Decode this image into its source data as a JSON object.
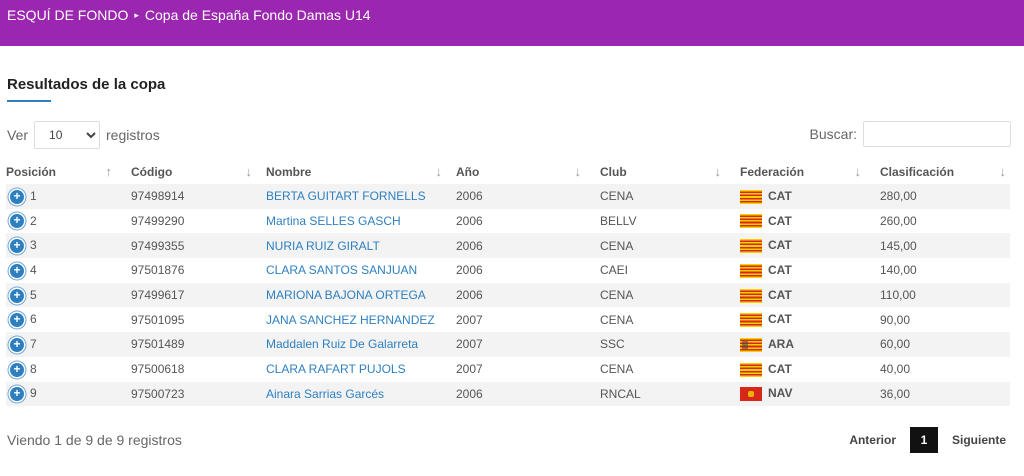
{
  "breadcrumb": {
    "root": "ESQUÍ DE FONDO",
    "separator": "▸",
    "current": "Copa de España Fondo Damas U14"
  },
  "section_title": "Resultados de la copa",
  "length": {
    "prefix": "Ver",
    "value": "10",
    "suffix": "registros"
  },
  "search": {
    "label": "Buscar:",
    "value": ""
  },
  "table": {
    "headers": {
      "pos": "Posición",
      "code": "Código",
      "name": "Nombre",
      "year": "Año",
      "club": "Club",
      "fed": "Federación",
      "score": "Clasificación"
    },
    "sort_icons": {
      "pos": "↑",
      "code": "↓",
      "name": "↓",
      "year": "↓",
      "club": "↓",
      "fed": "↓",
      "score": "↓"
    },
    "rows": [
      {
        "pos": "1",
        "code": "97498914",
        "name": "BERTA GUITART FORNELLS",
        "year": "2006",
        "club": "CENA",
        "fed": "CAT",
        "flag": "cat",
        "score": "280,00"
      },
      {
        "pos": "2",
        "code": "97499290",
        "name": "Martina SELLES GASCH",
        "year": "2006",
        "club": "BELLV",
        "fed": "CAT",
        "flag": "cat",
        "score": "260,00"
      },
      {
        "pos": "3",
        "code": "97499355",
        "name": "NURIA RUIZ GIRALT",
        "year": "2006",
        "club": "CENA",
        "fed": "CAT",
        "flag": "cat",
        "score": "145,00"
      },
      {
        "pos": "4",
        "code": "97501876",
        "name": "CLARA SANTOS SANJUAN",
        "year": "2006",
        "club": "CAEI",
        "fed": "CAT",
        "flag": "cat",
        "score": "140,00"
      },
      {
        "pos": "5",
        "code": "97499617",
        "name": "MARIONA BAJONA ORTEGA",
        "year": "2006",
        "club": "CENA",
        "fed": "CAT",
        "flag": "cat",
        "score": "110,00"
      },
      {
        "pos": "6",
        "code": "97501095",
        "name": "JANA SANCHEZ HERNANDEZ",
        "year": "2007",
        "club": "CENA",
        "fed": "CAT",
        "flag": "cat",
        "score": "90,00"
      },
      {
        "pos": "7",
        "code": "97501489",
        "name": "Maddalen Ruiz De Galarreta",
        "year": "2007",
        "club": "SSC",
        "fed": "ARA",
        "flag": "ara",
        "score": "60,00"
      },
      {
        "pos": "8",
        "code": "97500618",
        "name": "CLARA RAFART PUJOLS",
        "year": "2007",
        "club": "CENA",
        "fed": "CAT",
        "flag": "cat",
        "score": "40,00"
      },
      {
        "pos": "9",
        "code": "97500723",
        "name": "Ainara Sarrias Garcés",
        "year": "2006",
        "club": "RNCAL",
        "fed": "NAV",
        "flag": "nav",
        "score": "36,00"
      }
    ]
  },
  "info": "Viendo 1 de 9 de 9 registros",
  "pager": {
    "prev": "Anterior",
    "current": "1",
    "next": "Siguiente"
  },
  "colors": {
    "header": "#9b27b0",
    "accent": "#2e7fc0"
  }
}
